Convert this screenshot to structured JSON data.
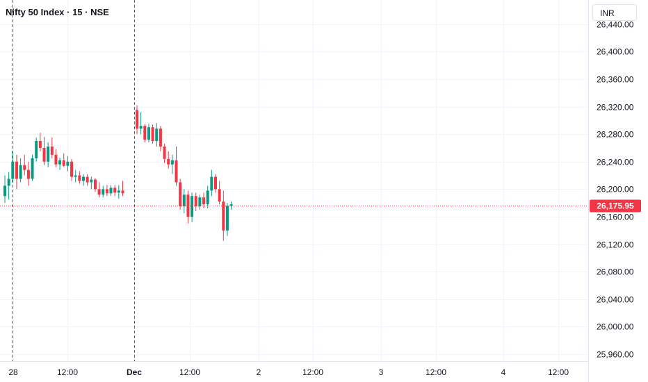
{
  "header": {
    "title": "Nifty 50 Index · 15 · NSE",
    "currency": "INR"
  },
  "chart_data": {
    "type": "candlestick",
    "title": "Nifty 50 Index · 15 · NSE",
    "ylim": [
      25950,
      26475
    ],
    "y_ticks": [
      25960,
      26000,
      26040,
      26080,
      26120,
      26160,
      26200,
      26240,
      26280,
      26320,
      26360,
      26400,
      26440
    ],
    "y_tick_labels": [
      "25,960.00",
      "26,000.00",
      "26,040.00",
      "26,080.00",
      "26,120.00",
      "26,160.00",
      "26,200.00",
      "26,240.00",
      "26,280.00",
      "26,320.00",
      "26,360.00",
      "26,400.00",
      "26,440.00"
    ],
    "x_tick_labels": [
      "28",
      "12:00",
      "Dec",
      "12:00",
      "2",
      "12:00",
      "3",
      "12:00",
      "4",
      "12:00"
    ],
    "last_price": 26175.95,
    "last_price_label": "26,175.95",
    "colors": {
      "up": "#089981",
      "down": "#f23645",
      "grid": "#f0f3fa",
      "session": "#2962ff"
    },
    "sessions": [
      {
        "label": "28",
        "candles": [
          [
            26190,
            26220,
            26180,
            26205
          ],
          [
            26205,
            26225,
            26185,
            26215
          ],
          [
            26215,
            26255,
            26210,
            26240
          ],
          [
            26240,
            26250,
            26200,
            26215
          ],
          [
            26215,
            26245,
            26210,
            26235
          ],
          [
            26235,
            26250,
            26220,
            26228
          ],
          [
            26228,
            26240,
            26205,
            26215
          ],
          [
            26215,
            26250,
            26212,
            26245
          ],
          [
            26245,
            26275,
            26240,
            26270
          ],
          [
            26270,
            26282,
            26255,
            26260
          ],
          [
            26260,
            26276,
            26235,
            26240
          ],
          [
            26240,
            26268,
            26232,
            26262
          ],
          [
            26262,
            26275,
            26245,
            26250
          ],
          [
            26250,
            26258,
            26232,
            26236
          ],
          [
            26236,
            26246,
            26228,
            26242
          ],
          [
            26242,
            26252,
            26232,
            26234
          ],
          [
            26234,
            26248,
            26226,
            26240
          ],
          [
            26240,
            26244,
            26212,
            26218
          ],
          [
            26218,
            26228,
            26210,
            26220
          ],
          [
            26220,
            26226,
            26208,
            26212
          ],
          [
            26212,
            26222,
            26205,
            26218
          ],
          [
            26218,
            26222,
            26205,
            26210
          ],
          [
            26210,
            26218,
            26200,
            26214
          ],
          [
            26214,
            26216,
            26196,
            26200
          ],
          [
            26200,
            26210,
            26188,
            26192
          ],
          [
            26192,
            26205,
            26188,
            26200
          ],
          [
            26200,
            26206,
            26190,
            26194
          ],
          [
            26194,
            26206,
            26190,
            26202
          ],
          [
            26202,
            26206,
            26190,
            26195
          ],
          [
            26195,
            26206,
            26186,
            26198
          ],
          [
            26198,
            26212,
            26190,
            26194
          ]
        ]
      },
      {
        "label": "Dec",
        "candles": [
          [
            26315,
            26322,
            26280,
            26288
          ],
          [
            26288,
            26312,
            26280,
            26292
          ],
          [
            26292,
            26295,
            26268,
            26272
          ],
          [
            26272,
            26295,
            26268,
            26290
          ],
          [
            26290,
            26294,
            26266,
            26270
          ],
          [
            26270,
            26296,
            26262,
            26288
          ],
          [
            26288,
            26292,
            26255,
            26262
          ],
          [
            26262,
            26266,
            26238,
            26244
          ],
          [
            26244,
            26255,
            26230,
            26236
          ],
          [
            26236,
            26250,
            26222,
            26242
          ],
          [
            26242,
            26262,
            26205,
            26210
          ],
          [
            26210,
            26215,
            26170,
            26175
          ],
          [
            26175,
            26200,
            26165,
            26192
          ],
          [
            26192,
            26198,
            26150,
            26160
          ],
          [
            26160,
            26195,
            26152,
            26190
          ],
          [
            26190,
            26195,
            26168,
            26175
          ],
          [
            26175,
            26192,
            26170,
            26188
          ],
          [
            26188,
            26195,
            26172,
            26178
          ],
          [
            26178,
            26205,
            26172,
            26198
          ],
          [
            26198,
            26228,
            26190,
            26218
          ],
          [
            26218,
            26222,
            26195,
            26200
          ],
          [
            26200,
            26212,
            26178,
            26182
          ],
          [
            26182,
            26198,
            26125,
            26140
          ],
          [
            26140,
            26180,
            26132,
            26176
          ],
          [
            26176,
            26182,
            26170,
            26178
          ]
        ]
      }
    ]
  }
}
